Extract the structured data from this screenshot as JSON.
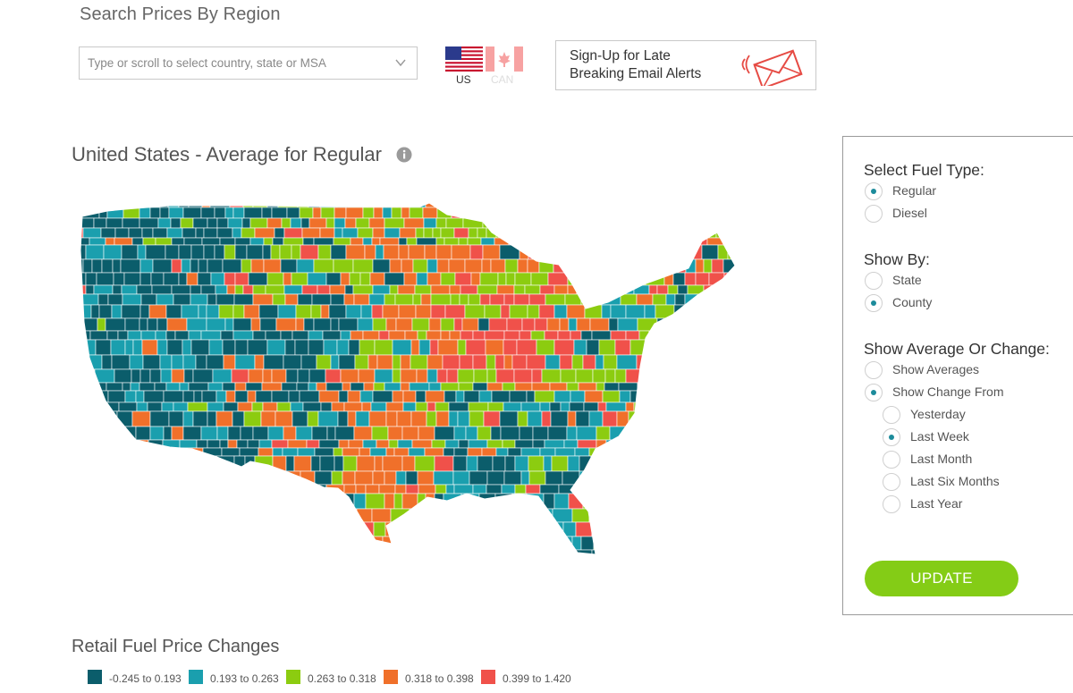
{
  "search": {
    "title": "Search Prices By Region",
    "placeholder": "Type or scroll to select country, state or MSA"
  },
  "country_flags": [
    {
      "label": "US",
      "selected": true
    },
    {
      "label": "CAN",
      "selected": false
    }
  ],
  "alerts": {
    "line1": "Sign-Up for Late",
    "line2": "Breaking Email Alerts"
  },
  "map": {
    "title": "United States - Average for Regular"
  },
  "panel": {
    "fuel_heading": "Select Fuel Type:",
    "fuel_options": [
      {
        "label": "Regular",
        "selected": true
      },
      {
        "label": "Diesel",
        "selected": false
      }
    ],
    "showby_heading": "Show By:",
    "showby_options": [
      {
        "label": "State",
        "selected": false
      },
      {
        "label": "County",
        "selected": true
      }
    ],
    "avg_heading": "Show Average Or Change:",
    "avg_options": [
      {
        "label": "Show Averages",
        "selected": false
      },
      {
        "label": "Show Change From",
        "selected": true
      }
    ],
    "change_options": [
      {
        "label": "Yesterday",
        "selected": false
      },
      {
        "label": "Last Week",
        "selected": true
      },
      {
        "label": "Last Month",
        "selected": false
      },
      {
        "label": "Last Six Months",
        "selected": false
      },
      {
        "label": "Last Year",
        "selected": false
      }
    ],
    "update_label": "UPDATE"
  },
  "legend": {
    "title": "Retail Fuel Price Changes",
    "items": [
      {
        "label": "-0.245 to 0.193",
        "color": "#0b5d6b"
      },
      {
        "label": "0.193 to 0.263",
        "color": "#1a9fae"
      },
      {
        "label": "0.263 to 0.318",
        "color": "#8ccc10"
      },
      {
        "label": "0.318 to 0.398",
        "color": "#f0702a"
      },
      {
        "label": "0.399 to 1.420",
        "color": "#f0514a"
      }
    ]
  },
  "colors": {
    "accent_teal": "#1c8b9b",
    "button_green": "#84cc16",
    "alert_red": "#e64b44"
  }
}
